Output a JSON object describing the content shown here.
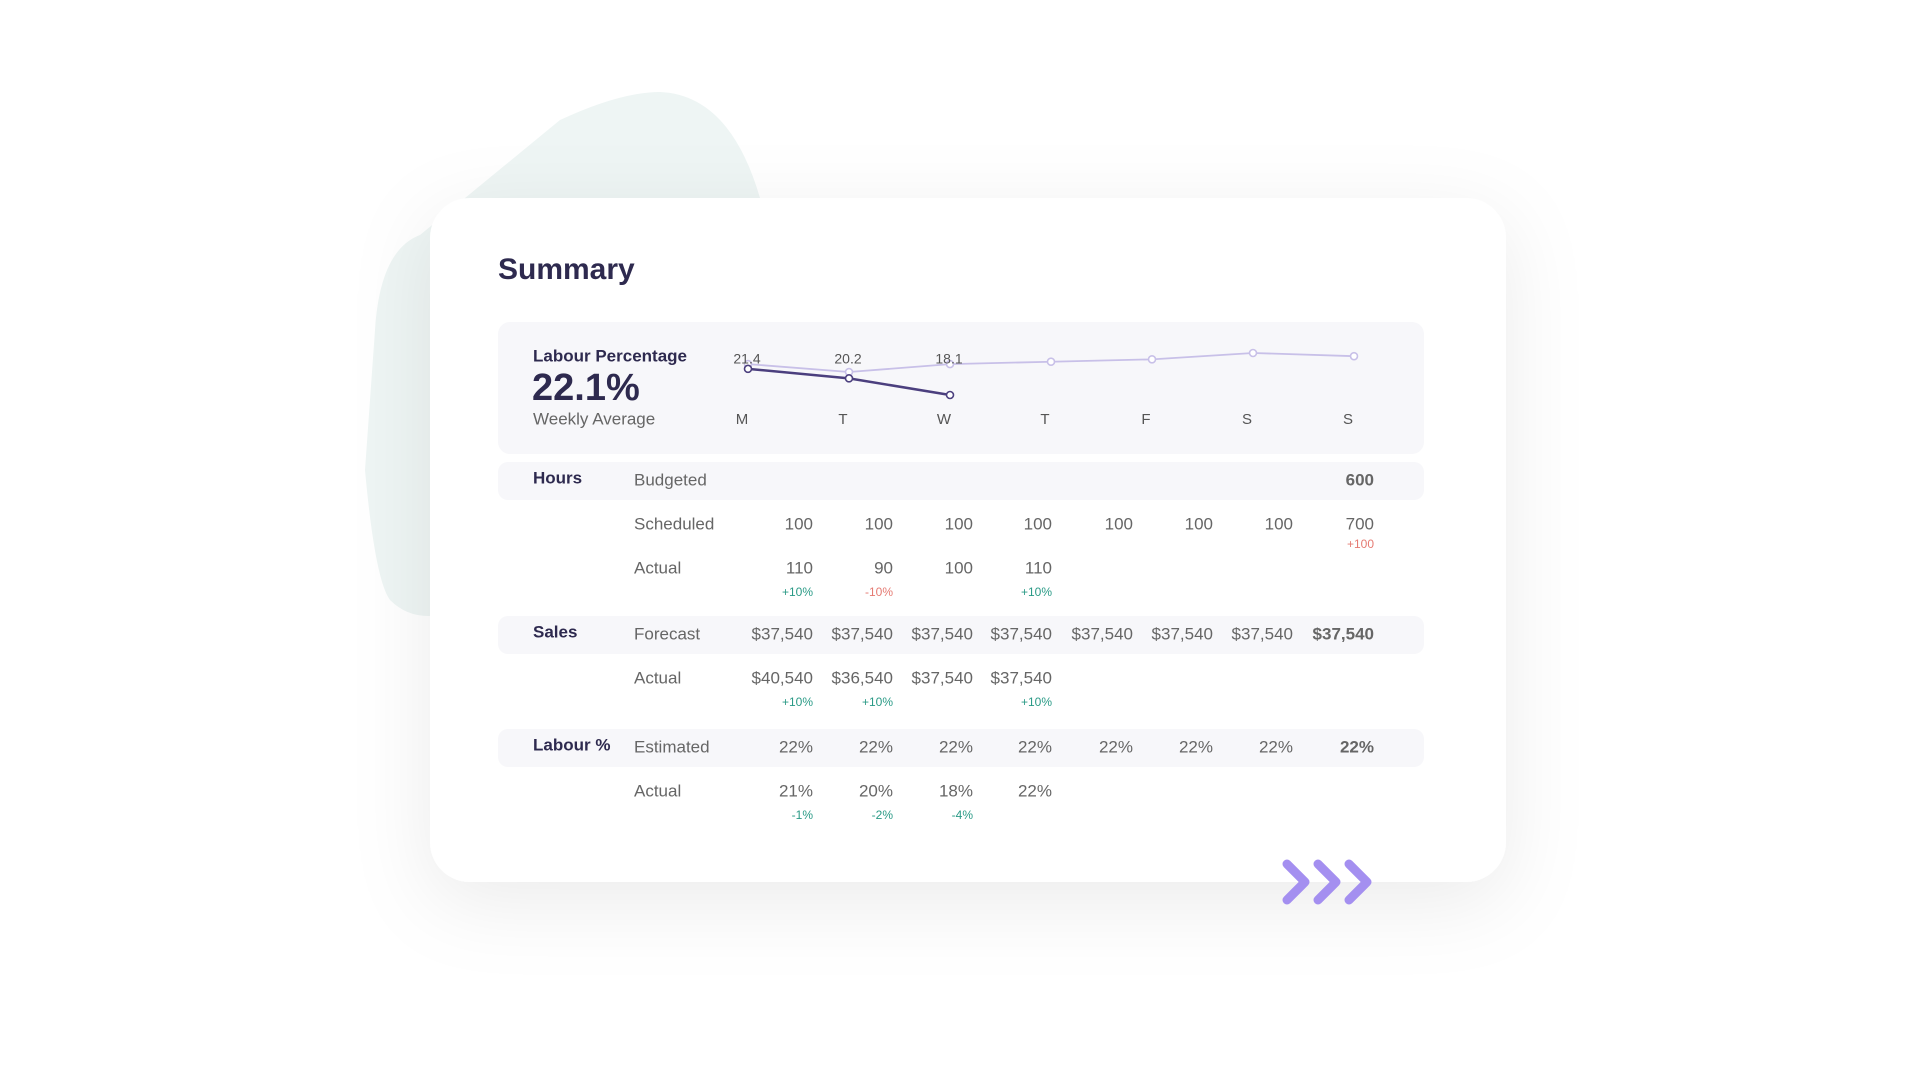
{
  "title": "Summary",
  "labour": {
    "title": "Labour Percentage",
    "value": "22.1%",
    "caption": "Weekly Average"
  },
  "chart_data": {
    "type": "line",
    "categories": [
      "M",
      "T",
      "W",
      "T",
      "F",
      "S",
      "S"
    ],
    "series": [
      {
        "color": "#c8c0e8",
        "values": [
          22,
          21,
          22,
          22.3,
          22.6,
          23.4,
          23
        ]
      },
      {
        "color": "#4b3f7e",
        "values": [
          21.4,
          20.2,
          18.1,
          null,
          null,
          null,
          null
        ],
        "data_labels": true
      }
    ]
  },
  "table": {
    "sections": [
      {
        "label": "Hours",
        "rows": [
          {
            "label": "Budgeted",
            "cells": [
              null,
              null,
              null,
              null,
              null,
              null,
              null,
              "600"
            ],
            "deltas": [
              null,
              null,
              null,
              null,
              null,
              null,
              null,
              null
            ]
          },
          {
            "label": "Scheduled",
            "cells": [
              "100",
              "100",
              "100",
              "100",
              "100",
              "100",
              "100",
              "700"
            ],
            "deltas": [
              null,
              null,
              null,
              null,
              null,
              null,
              null,
              {
                "text": "+100",
                "color": "#e57a72"
              }
            ]
          },
          {
            "label": "Actual",
            "cells": [
              "110",
              "90",
              "100",
              "110",
              null,
              null,
              null,
              null
            ],
            "deltas": [
              {
                "text": "+10%",
                "color": "#2a9a86"
              },
              {
                "text": "-10%",
                "color": "#e57a72"
              },
              null,
              {
                "text": "+10%",
                "color": "#2a9a86"
              },
              null,
              null,
              null,
              null
            ]
          }
        ]
      },
      {
        "label": "Sales",
        "rows": [
          {
            "label": "Forecast",
            "cells": [
              "$37,540",
              "$37,540",
              "$37,540",
              "$37,540",
              "$37,540",
              "$37,540",
              "$37,540",
              "$37,540"
            ],
            "deltas": [
              null,
              null,
              null,
              null,
              null,
              null,
              null,
              null
            ]
          },
          {
            "label": "Actual",
            "cells": [
              "$40,540",
              "$36,540",
              "$37,540",
              "$37,540",
              null,
              null,
              null,
              null
            ],
            "deltas": [
              {
                "text": "+10%",
                "color": "#2a9a86"
              },
              {
                "text": "+10%",
                "color": "#2a9a86"
              },
              null,
              {
                "text": "+10%",
                "color": "#2a9a86"
              },
              null,
              null,
              null,
              null
            ]
          }
        ]
      },
      {
        "label": "Labour %",
        "rows": [
          {
            "label": "Estimated",
            "cells": [
              "22%",
              "22%",
              "22%",
              "22%",
              "22%",
              "22%",
              "22%",
              "22%"
            ],
            "deltas": [
              null,
              null,
              null,
              null,
              null,
              null,
              null,
              null
            ]
          },
          {
            "label": "Actual",
            "cells": [
              "21%",
              "20%",
              "18%",
              "22%",
              null,
              null,
              null,
              null
            ],
            "deltas": [
              {
                "text": "-1%",
                "color": "#2a9a86"
              },
              {
                "text": "-2%",
                "color": "#2a9a86"
              },
              {
                "text": "-4%",
                "color": "#2a9a86"
              },
              null,
              null,
              null,
              null,
              null
            ]
          }
        ]
      }
    ]
  }
}
